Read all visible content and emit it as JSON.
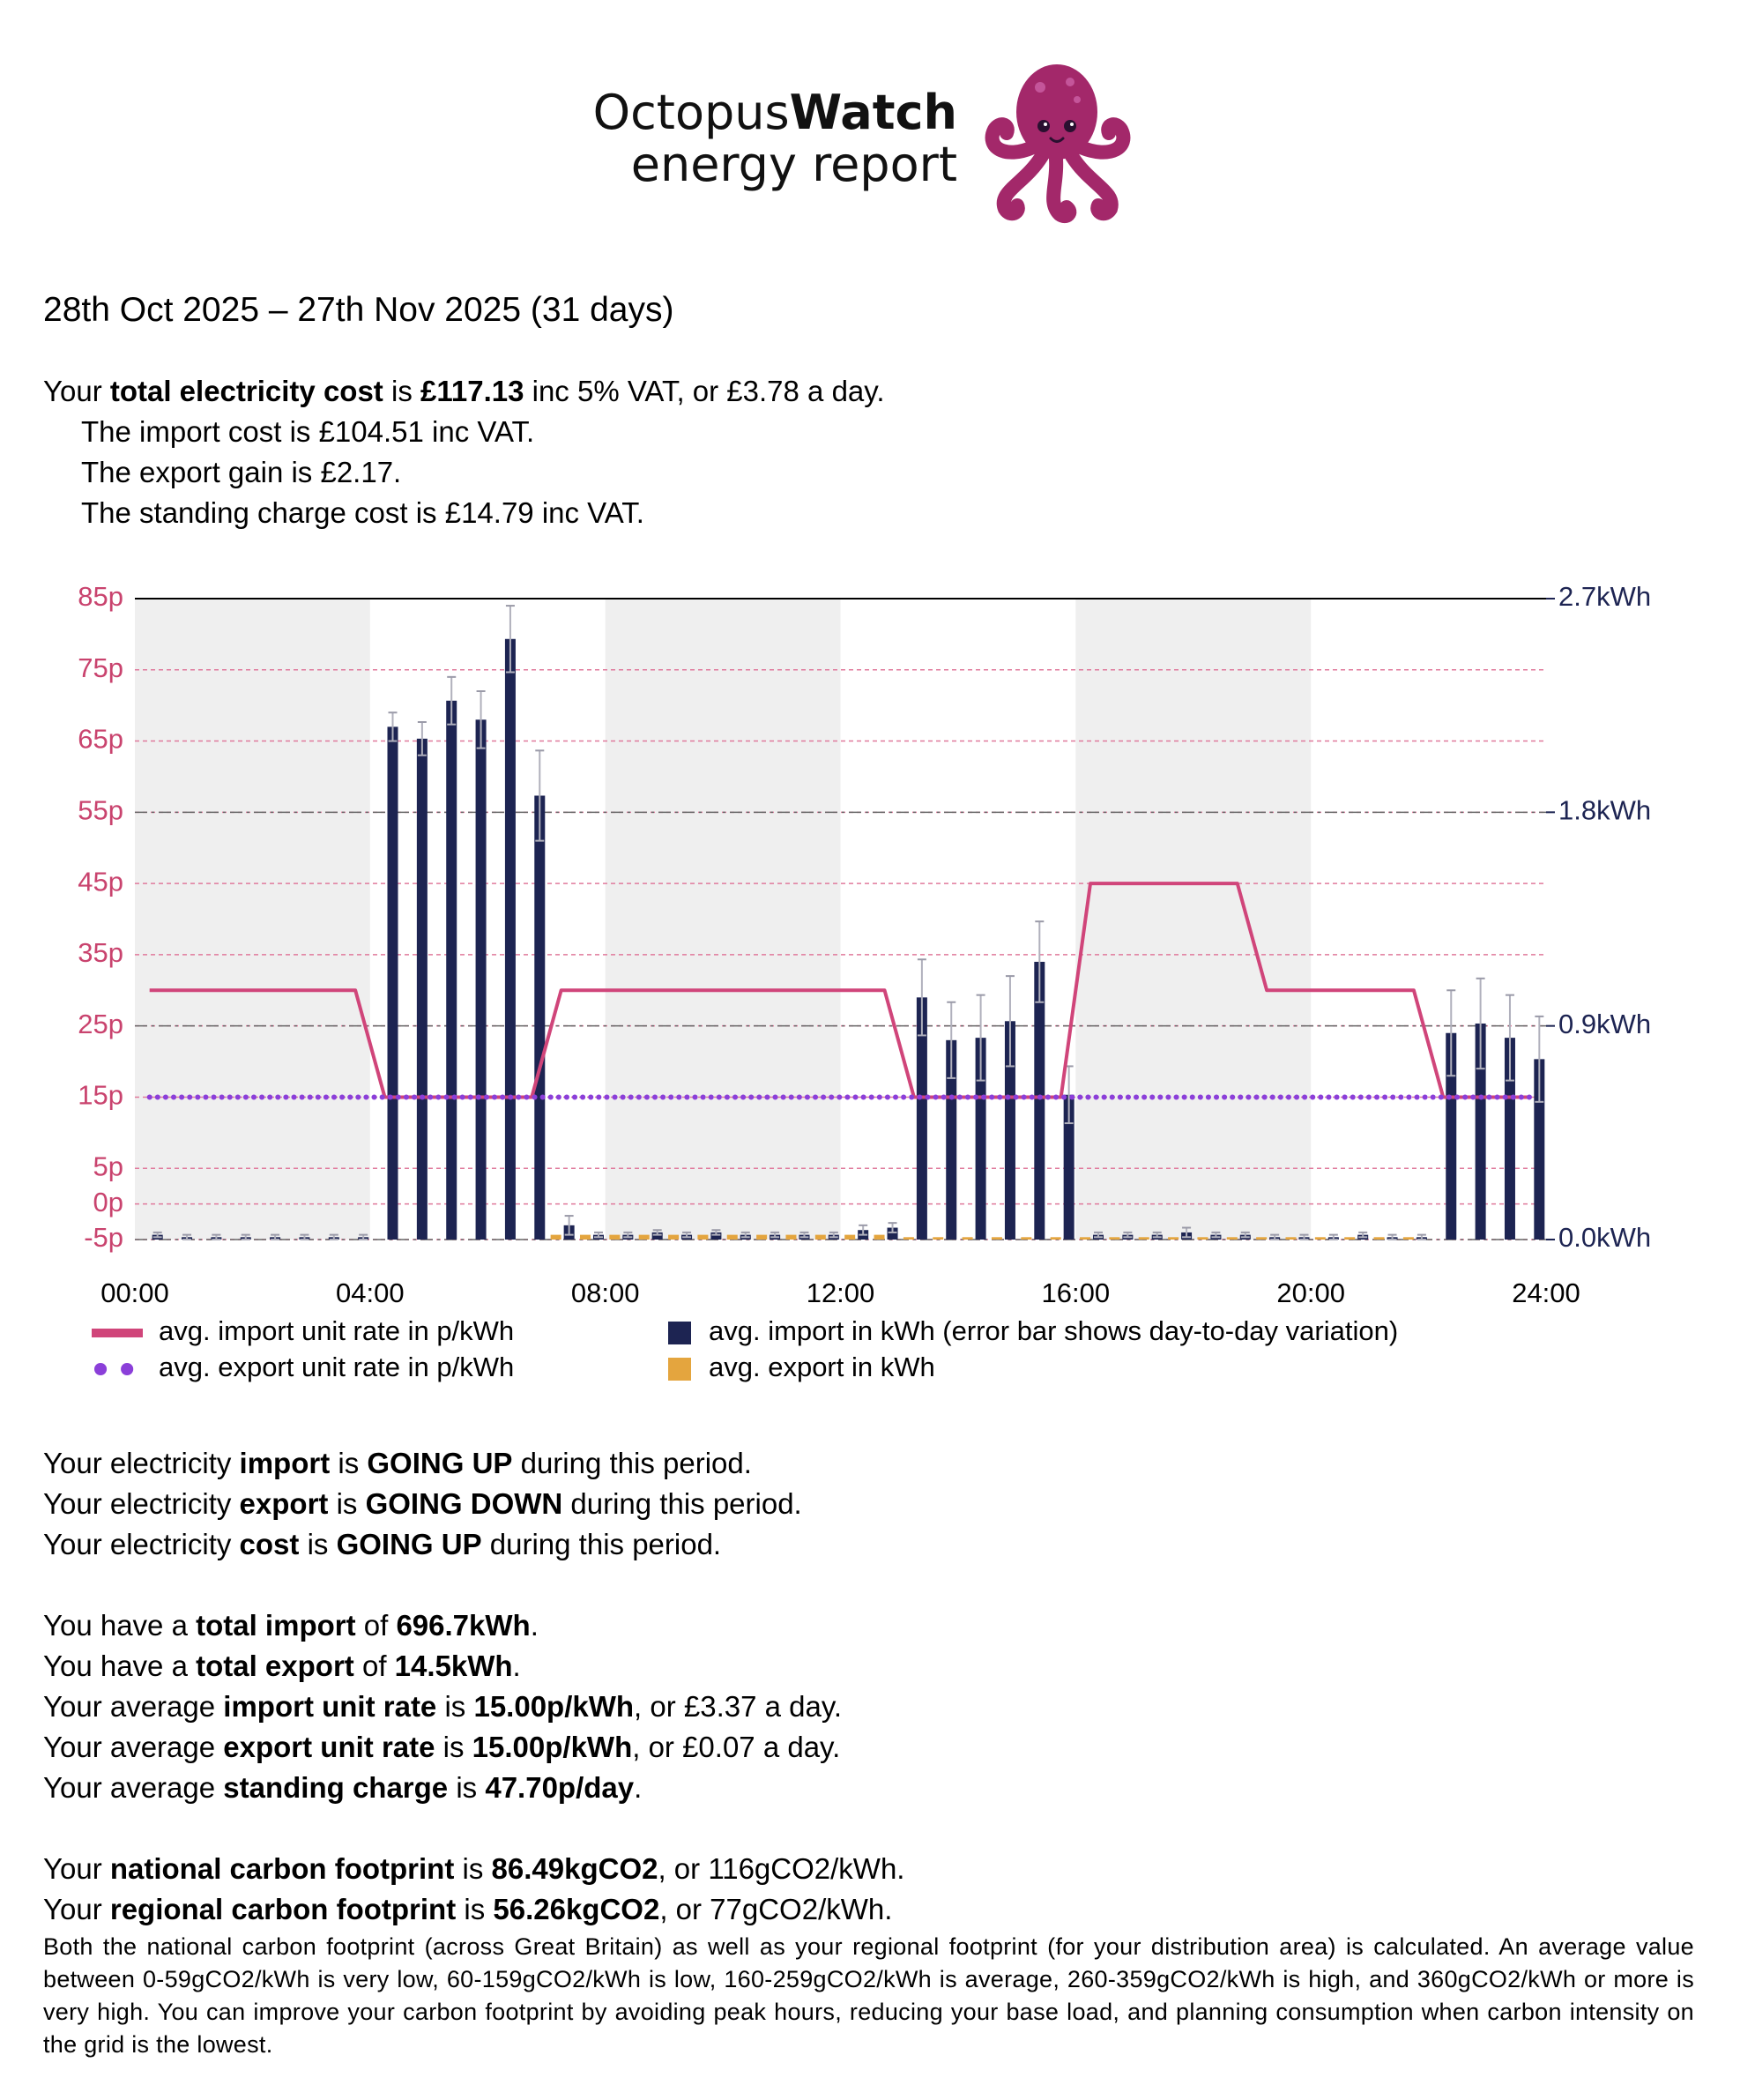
{
  "header": {
    "brand": "Octopus",
    "brand_bold": "Watch",
    "subtitle": "energy report"
  },
  "period": "28th Oct 2025 – 27th Nov 2025 (31 days)",
  "cost": {
    "summary": [
      "Your ",
      {
        "bold": "total electricity cost"
      },
      " is ",
      {
        "bold": "£117.13"
      },
      " inc 5% VAT, or £3.78 a day."
    ],
    "details": [
      "The import cost is £104.51 inc VAT.",
      "The export gain is £2.17.",
      "The standing charge cost is £14.79 inc VAT."
    ]
  },
  "chart_data": {
    "type": "combo",
    "x": [
      0.25,
      0.75,
      1.25,
      1.75,
      2.25,
      2.75,
      3.25,
      3.75,
      4.25,
      4.75,
      5.25,
      5.75,
      6.25,
      6.75,
      7.25,
      7.75,
      8.25,
      8.75,
      9.25,
      9.75,
      10.25,
      10.75,
      11.25,
      11.75,
      12.25,
      12.75,
      13.25,
      13.75,
      14.25,
      14.75,
      15.25,
      15.75,
      16.25,
      16.75,
      17.25,
      17.75,
      18.25,
      18.75,
      19.25,
      19.75,
      20.25,
      20.75,
      21.25,
      21.75,
      22.25,
      22.75,
      23.25,
      23.75
    ],
    "xlim": [
      0,
      24
    ],
    "xticks": [
      {
        "value": 0,
        "label": "00:00"
      },
      {
        "value": 4,
        "label": "04:00"
      },
      {
        "value": 8,
        "label": "08:00"
      },
      {
        "value": 12,
        "label": "12:00"
      },
      {
        "value": 16,
        "label": "16:00"
      },
      {
        "value": 20,
        "label": "20:00"
      },
      {
        "value": 24,
        "label": "24:00"
      }
    ],
    "ylim": [
      -5,
      85
    ],
    "yticks": [
      {
        "value": 85,
        "label": "85p"
      },
      {
        "value": 75,
        "label": "75p"
      },
      {
        "value": 65,
        "label": "65p"
      },
      {
        "value": 55,
        "label": "55p"
      },
      {
        "value": 45,
        "label": "45p"
      },
      {
        "value": 35,
        "label": "35p"
      },
      {
        "value": 25,
        "label": "25p"
      },
      {
        "value": 15,
        "label": "15p"
      },
      {
        "value": 5,
        "label": "5p"
      },
      {
        "value": 0,
        "label": "0p"
      },
      {
        "value": -5,
        "label": "-5p"
      }
    ],
    "y2lim": [
      0,
      2.7
    ],
    "y2ticks": [
      {
        "value": 0,
        "label": "0.0kWh"
      },
      {
        "value": 0.9,
        "label": "0.9kWh"
      },
      {
        "value": 1.8,
        "label": "1.8kWh"
      },
      {
        "value": 2.7,
        "label": "2.7kWh"
      }
    ],
    "ytick_color": "#c9436e",
    "y2tick_color": "#1d2452",
    "grid": true,
    "shade_alternate": true,
    "legend": "bottom",
    "series": [
      {
        "name": "avg. import unit rate in p/kWh",
        "type": "line",
        "color": "#d0457a",
        "values": [
          30,
          30,
          30,
          30,
          30,
          30,
          30,
          30,
          15,
          15,
          15,
          15,
          15,
          15,
          30,
          30,
          30,
          30,
          30,
          30,
          30,
          30,
          30,
          30,
          30,
          30,
          15,
          15,
          15,
          15,
          15,
          15,
          45,
          45,
          45,
          45,
          45,
          45,
          30,
          30,
          30,
          30,
          30,
          30,
          15,
          15,
          15,
          15
        ]
      },
      {
        "name": "avg. export unit rate in p/kWh",
        "type": "line",
        "style": "dotted",
        "color": "#8b3fd9",
        "values": [
          15,
          15,
          15,
          15,
          15,
          15,
          15,
          15,
          15,
          15,
          15,
          15,
          15,
          15,
          15,
          15,
          15,
          15,
          15,
          15,
          15,
          15,
          15,
          15,
          15,
          15,
          15,
          15,
          15,
          15,
          15,
          15,
          15,
          15,
          15,
          15,
          15,
          15,
          15,
          15,
          15,
          15,
          15,
          15,
          15,
          15,
          15,
          15
        ]
      },
      {
        "name": "avg. import in kWh (error bar shows day-to-day variation)",
        "type": "bar",
        "axis": "y2",
        "color": "#1d2452",
        "values": [
          0.02,
          0.01,
          0.01,
          0.01,
          0.01,
          0.01,
          0.01,
          0.01,
          2.16,
          2.11,
          2.27,
          2.19,
          2.53,
          1.87,
          0.06,
          0.02,
          0.02,
          0.03,
          0.02,
          0.03,
          0.02,
          0.02,
          0.02,
          0.02,
          0.04,
          0.05,
          1.02,
          0.84,
          0.85,
          0.92,
          1.17,
          0.61,
          0.02,
          0.02,
          0.02,
          0.03,
          0.02,
          0.02,
          0.01,
          0.01,
          0.01,
          0.02,
          0.01,
          0.01,
          0.87,
          0.91,
          0.85,
          0.76
        ],
        "errors": [
          0.01,
          0.01,
          0.01,
          0.01,
          0.01,
          0.01,
          0.01,
          0.01,
          0.06,
          0.07,
          0.1,
          0.12,
          0.14,
          0.19,
          0.04,
          0.01,
          0.01,
          0.01,
          0.01,
          0.01,
          0.01,
          0.01,
          0.01,
          0.01,
          0.02,
          0.02,
          0.16,
          0.16,
          0.18,
          0.19,
          0.17,
          0.12,
          0.01,
          0.01,
          0.01,
          0.02,
          0.01,
          0.01,
          0.01,
          0.01,
          0.01,
          0.01,
          0.01,
          0.01,
          0.18,
          0.19,
          0.18,
          0.18
        ]
      },
      {
        "name": "avg. export in kWh",
        "type": "bar",
        "axis": "y2",
        "color": "#e4a53e",
        "values": [
          0,
          0,
          0,
          0,
          0,
          0,
          0,
          0,
          0,
          0,
          0,
          0,
          0,
          0,
          0.02,
          0.02,
          0.02,
          0.02,
          0.02,
          0.02,
          0.02,
          0.02,
          0.02,
          0.02,
          0.02,
          0.02,
          0.01,
          0.01,
          0.01,
          0.01,
          0.01,
          0.01,
          0.01,
          0.01,
          0.01,
          0.01,
          0.01,
          0.01,
          0.01,
          0.01,
          0.01,
          0.01,
          0.01,
          0.01,
          0,
          0,
          0,
          0
        ]
      }
    ]
  },
  "trends": [
    [
      "Your electricity ",
      {
        "bold": "import"
      },
      " is ",
      {
        "bold": "GOING UP"
      },
      " during this period."
    ],
    [
      "Your electricity ",
      {
        "bold": "export"
      },
      " is ",
      {
        "bold": "GOING DOWN"
      },
      " during this period."
    ],
    [
      "Your electricity ",
      {
        "bold": "cost"
      },
      " is ",
      {
        "bold": "GOING UP"
      },
      " during this period."
    ]
  ],
  "totals": [
    [
      "You have a ",
      {
        "bold": "total import"
      },
      " of ",
      {
        "bold": "696.7kWh"
      },
      "."
    ],
    [
      "You have a ",
      {
        "bold": "total export"
      },
      " of ",
      {
        "bold": "14.5kWh"
      },
      "."
    ],
    [
      "Your average ",
      {
        "bold": "import unit rate"
      },
      " is ",
      {
        "bold": "15.00p/kWh"
      },
      ", or £3.37 a day."
    ],
    [
      "Your average ",
      {
        "bold": "export unit rate"
      },
      " is ",
      {
        "bold": "15.00p/kWh"
      },
      ", or £0.07 a day."
    ],
    [
      "Your average ",
      {
        "bold": "standing charge"
      },
      " is ",
      {
        "bold": "47.70p/day"
      },
      "."
    ]
  ],
  "carbon": {
    "lines": [
      [
        "Your ",
        {
          "bold": "national carbon footprint"
        },
        " is ",
        {
          "bold": "86.49kgCO2"
        },
        ", or 116gCO2/kWh."
      ],
      [
        "Your ",
        {
          "bold": "regional carbon footprint"
        },
        " is ",
        {
          "bold": "56.26kgCO2"
        },
        ", or 77gCO2/kWh."
      ]
    ],
    "note": "Both the national carbon footprint (across Great Britain) as well as your regional footprint (for your distribution area) is calculated. An average value between 0-59gCO2/kWh is very low, 60-159gCO2/kWh is low, 160-259gCO2/kWh is average, 260-359gCO2/kWh is high, and 360gCO2/kWh or more is very high. You can improve your carbon footprint by avoiding peak hours, reducing your base load, and planning consumption when carbon intensity on the grid is the lowest."
  }
}
